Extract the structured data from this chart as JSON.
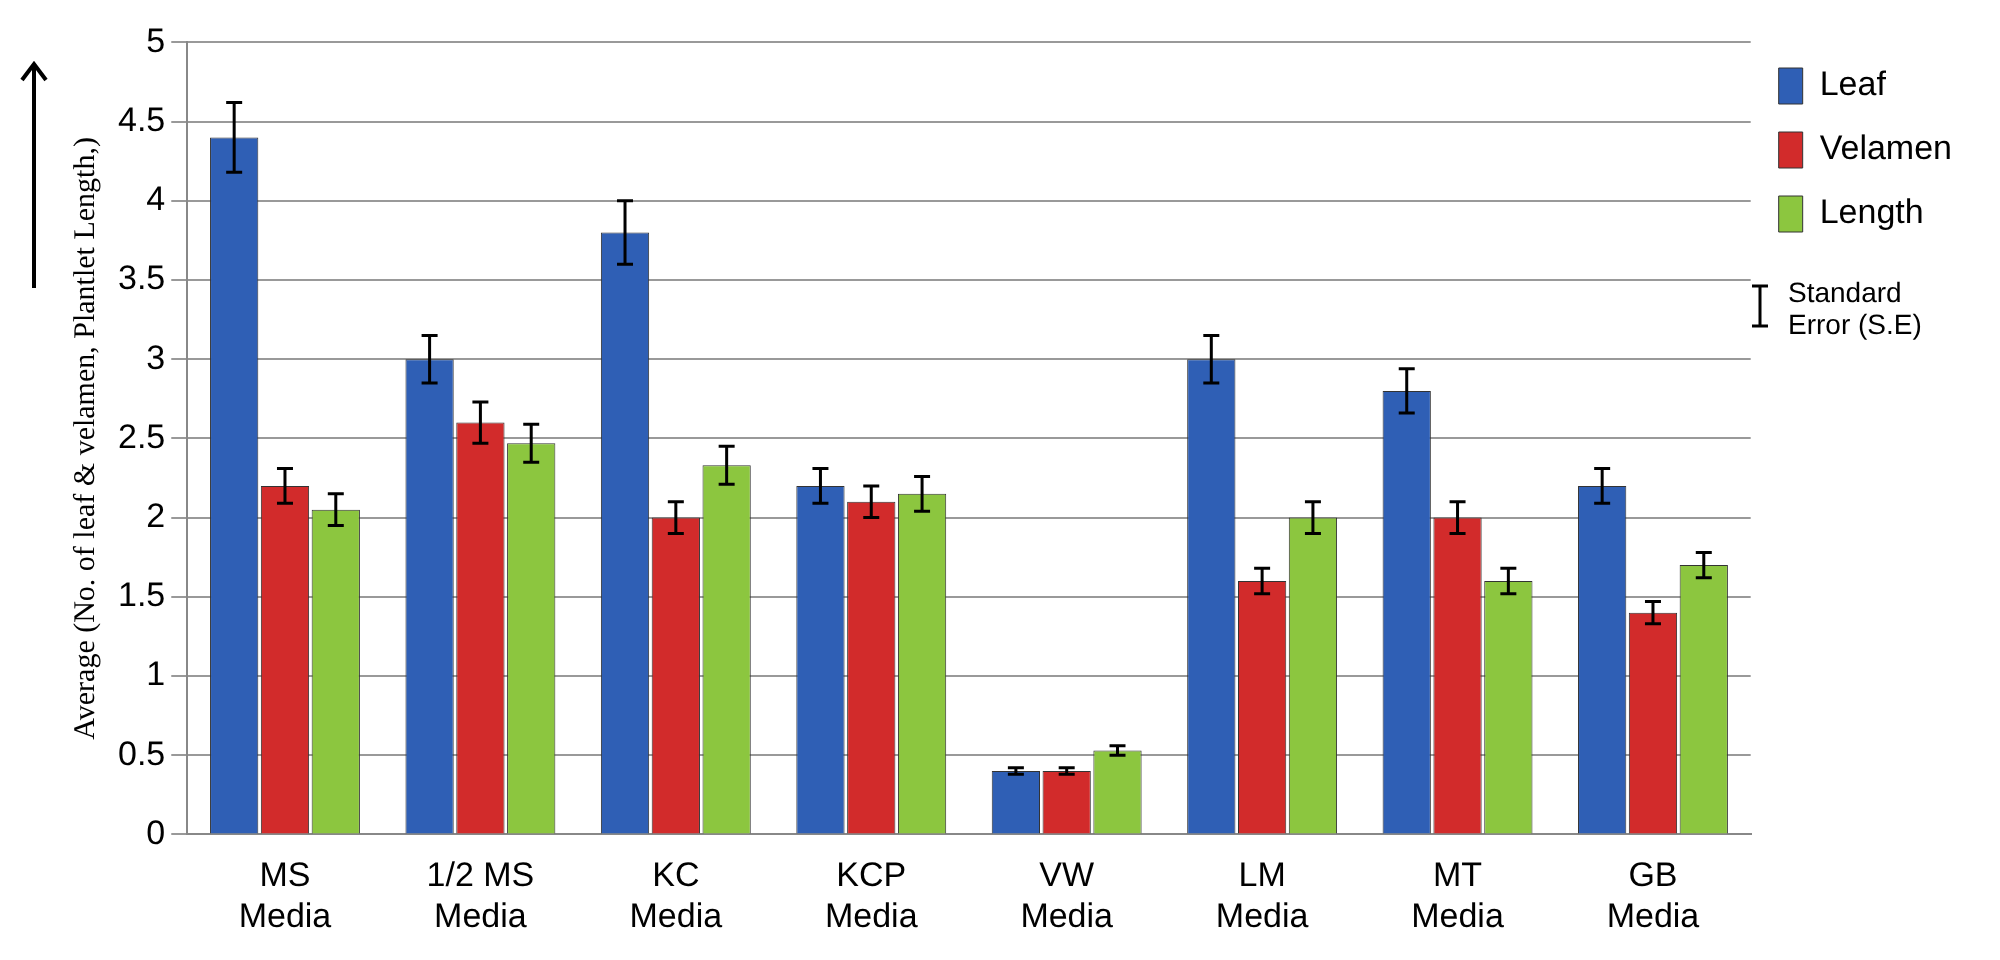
{
  "chart_data": {
    "type": "bar",
    "ylabel": "Average (No. of leaf & velamen, Plantlet Length,)",
    "categories": [
      "MS Media",
      "1/2 MS Media",
      "KC Media",
      "KCP Media",
      "VW Media",
      "LM Media",
      "MT Media",
      "GB Media"
    ],
    "series": [
      {
        "name": "Leaf",
        "color": "#2f5fb5",
        "values": [
          4.4,
          3.0,
          3.8,
          2.2,
          0.4,
          3.0,
          2.8,
          2.2
        ],
        "errors": [
          0.22,
          0.15,
          0.2,
          0.11,
          0.02,
          0.15,
          0.14,
          0.11
        ]
      },
      {
        "name": "Velamen",
        "color": "#d22b2b",
        "values": [
          2.2,
          2.6,
          2.0,
          2.1,
          0.4,
          1.6,
          2.0,
          1.4
        ],
        "errors": [
          0.11,
          0.13,
          0.1,
          0.1,
          0.02,
          0.08,
          0.1,
          0.07
        ]
      },
      {
        "name": "Length",
        "color": "#8cc63f",
        "values": [
          2.05,
          2.47,
          2.33,
          2.15,
          0.53,
          2.0,
          1.6,
          1.7
        ],
        "errors": [
          0.1,
          0.12,
          0.12,
          0.11,
          0.03,
          0.1,
          0.08,
          0.08
        ]
      }
    ],
    "ylim": [
      0,
      5
    ],
    "yticks": [
      0,
      0.5,
      1,
      1.5,
      2,
      2.5,
      3,
      3.5,
      4,
      4.5,
      5
    ],
    "grid": "y",
    "legend": "top right",
    "annotations": [
      "Standard Error (S.E)"
    ]
  }
}
